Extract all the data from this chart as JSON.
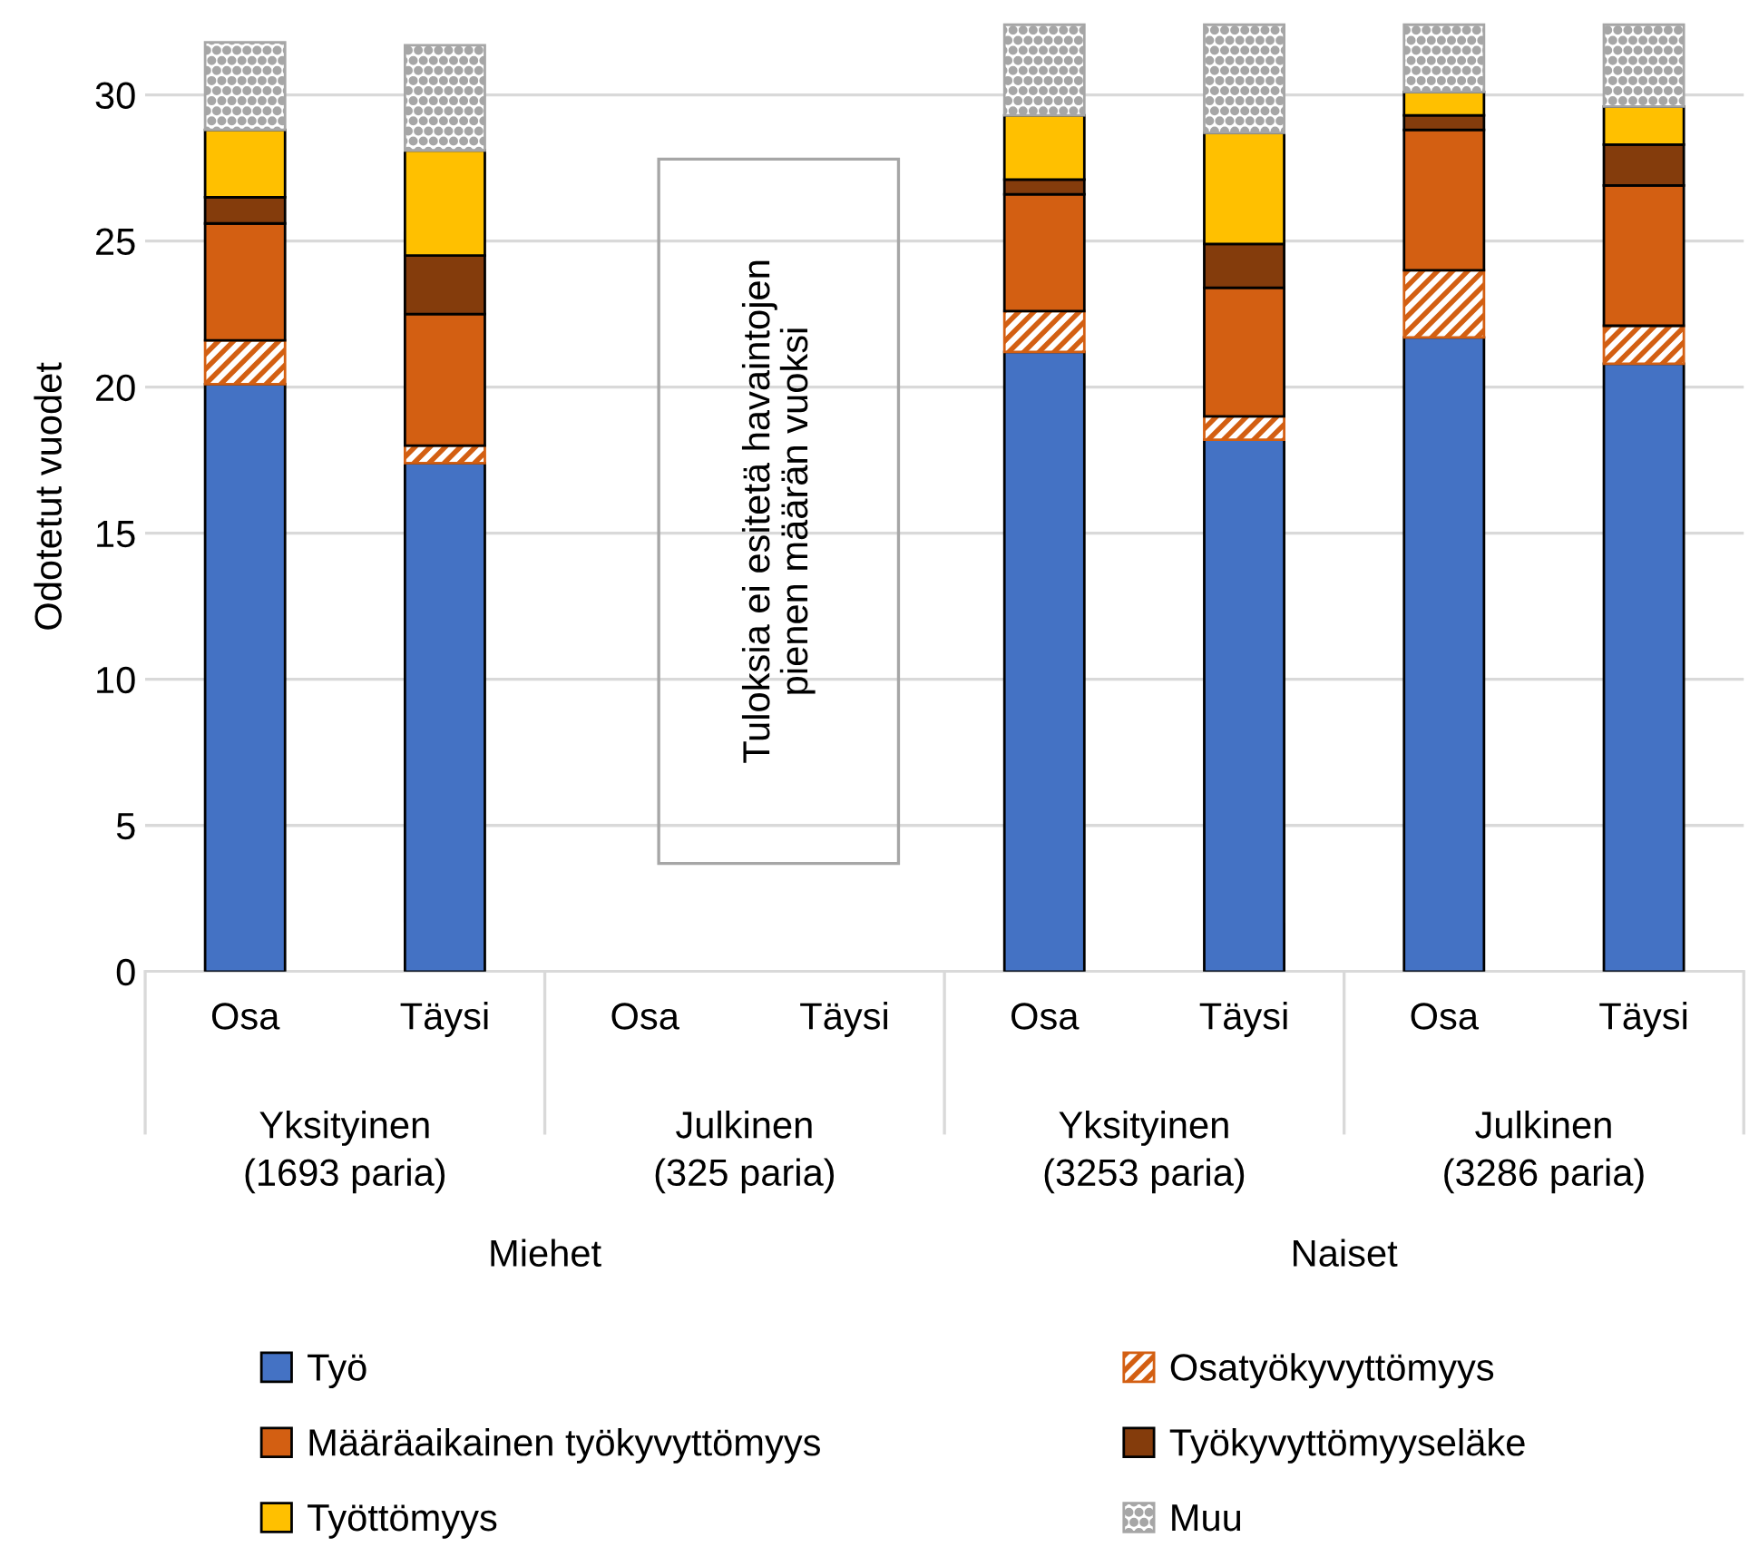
{
  "chart_data": {
    "type": "bar",
    "stacked": true,
    "ylabel": "Odotetut vuodet",
    "categories": [
      "Osa",
      "Täysi",
      "Osa",
      "Täysi",
      "Osa",
      "Täysi",
      "Osa",
      "Täysi"
    ],
    "series": [
      {
        "name": "Työ",
        "color": "#4472c4",
        "values": [
          20.1,
          17.4,
          null,
          null,
          21.2,
          18.2,
          21.7,
          20.8
        ]
      },
      {
        "name": "Osatyökyvyttömyys",
        "color": "#d35f12",
        "values": [
          1.5,
          0.6,
          null,
          null,
          1.4,
          0.8,
          2.3,
          1.3
        ]
      },
      {
        "name": "Määräaikainen työkyvyttömyys",
        "color": "#d35f12",
        "values": [
          4.0,
          4.5,
          null,
          null,
          4.0,
          4.4,
          4.8,
          4.8
        ]
      },
      {
        "name": "Työkyvyttömyyseläke",
        "color": "#843c0c",
        "values": [
          0.9,
          2.0,
          null,
          null,
          0.5,
          1.5,
          0.5,
          1.4
        ]
      },
      {
        "name": "Työttömyys",
        "color": "#ffc000",
        "values": [
          2.3,
          3.6,
          null,
          null,
          2.2,
          3.8,
          0.8,
          1.3
        ]
      },
      {
        "name": "Muu",
        "color": "#a6a6a6",
        "values": [
          3.0,
          3.6,
          null,
          null,
          3.1,
          3.7,
          2.3,
          2.8
        ]
      }
    ],
    "ylim": [
      0,
      32.5
    ],
    "yticks": [
      0,
      5,
      10,
      15,
      20,
      25,
      30
    ],
    "grid": "y",
    "legend": "bottom",
    "annotations": [
      "Tuloksia ei esitetä havaintojen\npienen määrän vuoksi",
      "Yksityinen\n(1693 paria)",
      "Julkinen\n(325 paria)",
      "Yksityinen\n(3253 paria)",
      "Julkinen\n(3286 paria)",
      "Miehet",
      "Naiset"
    ]
  }
}
